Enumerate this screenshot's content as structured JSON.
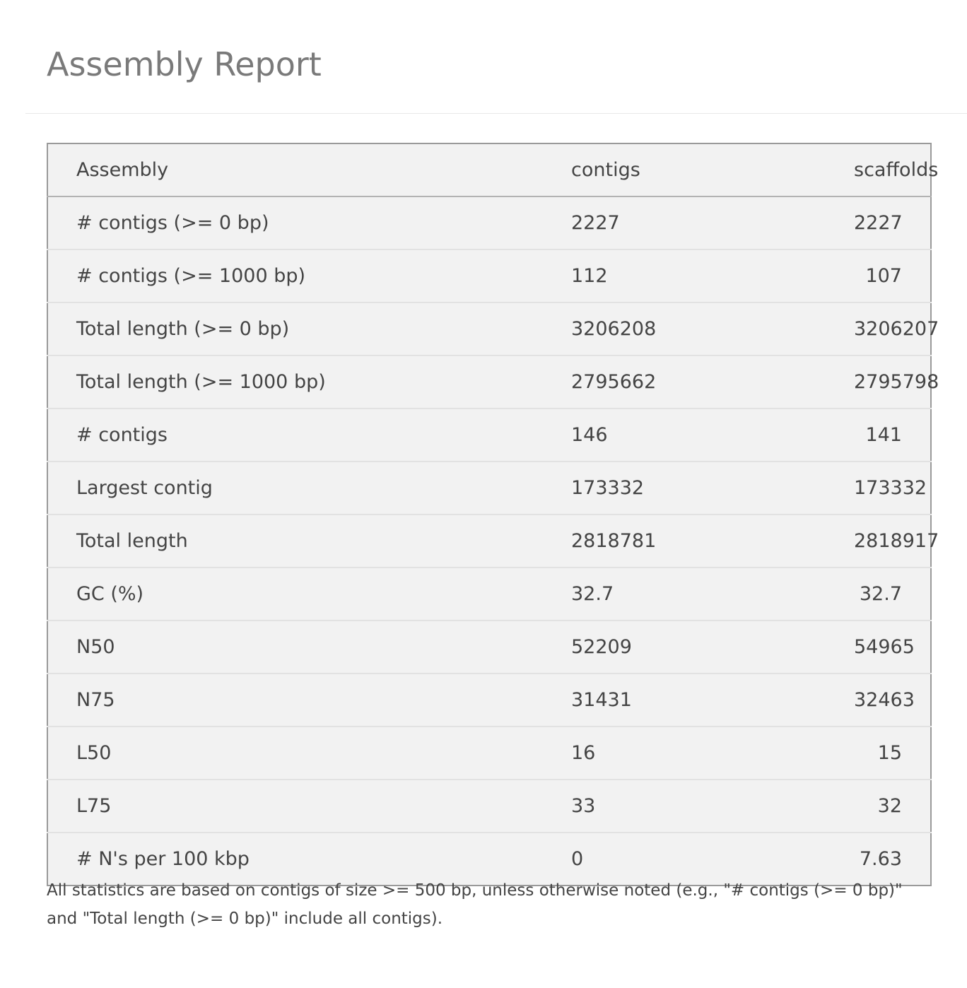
{
  "page": {
    "title": "Assembly Report"
  },
  "table": {
    "headers": {
      "label": "Assembly",
      "contigs": "contigs",
      "scaffolds": "scaffolds"
    },
    "rows": [
      {
        "label": "# contigs (>= 0 bp)",
        "contigs": "2227",
        "scaffolds": "2227"
      },
      {
        "label": "# contigs (>= 1000 bp)",
        "contigs": "112",
        "scaffolds": "107"
      },
      {
        "label": "Total length (>= 0 bp)",
        "contigs": "3206208",
        "scaffolds": "3206207"
      },
      {
        "label": "Total length (>= 1000 bp)",
        "contigs": "2795662",
        "scaffolds": "2795798"
      },
      {
        "label": "# contigs",
        "contigs": "146",
        "scaffolds": "141"
      },
      {
        "label": "Largest contig",
        "contigs": "173332",
        "scaffolds": "173332"
      },
      {
        "label": "Total length",
        "contigs": "2818781",
        "scaffolds": "2818917"
      },
      {
        "label": "GC (%)",
        "contigs": "32.7",
        "scaffolds": "32.7"
      },
      {
        "label": "N50",
        "contigs": "52209",
        "scaffolds": "54965"
      },
      {
        "label": "N75",
        "contigs": "31431",
        "scaffolds": "32463"
      },
      {
        "label": "L50",
        "contigs": "16",
        "scaffolds": "15"
      },
      {
        "label": "L75",
        "contigs": "33",
        "scaffolds": "32"
      },
      {
        "label": "# N's per 100 kbp",
        "contigs": "0",
        "scaffolds": "7.63"
      }
    ]
  },
  "footnote": "All statistics are based on contigs of size >= 500 bp, unless otherwise noted (e.g., \"# contigs (>= 0 bp)\" and \"Total length (>= 0 bp)\" include all contigs).",
  "colors": {
    "title": "#7a7a7a",
    "text": "#444444",
    "table_background": "#f2f2f2",
    "table_border": "#9a9a9a"
  }
}
